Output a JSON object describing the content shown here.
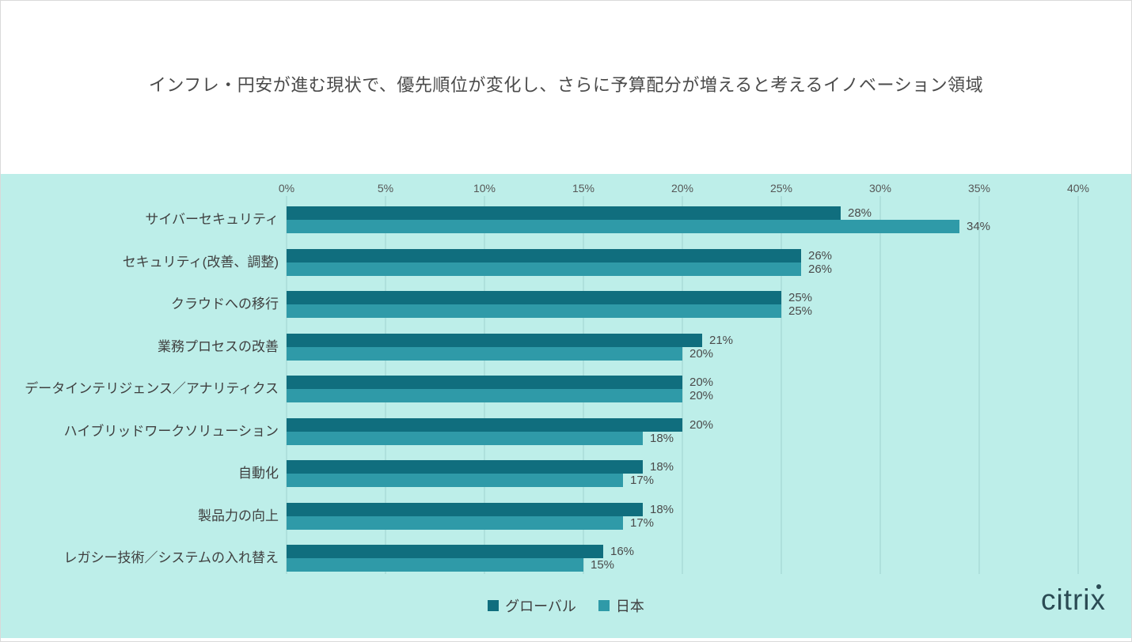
{
  "title": "インフレ・円安が進む現状で、優先順位が変化し、さらに予算配分が増えると考えるイノベーション領域",
  "chart_data": {
    "type": "bar",
    "orientation": "horizontal",
    "title": "インフレ・円安が進む現状で、優先順位が変化し、さらに予算配分が増えると考えるイノベーション領域",
    "categories": [
      "サイバーセキュリティ",
      "セキュリティ(改善、調整)",
      "クラウドへの移行",
      "業務プロセスの改善",
      "データインテリジェンス／アナリティクス",
      "ハイブリッドワークソリューション",
      "自動化",
      "製品力の向上",
      "レガシー技術／システムの入れ替え"
    ],
    "series": [
      {
        "name": "グローバル",
        "color": "#106e7e",
        "values": [
          28,
          26,
          25,
          21,
          20,
          20,
          18,
          18,
          16
        ]
      },
      {
        "name": "日本",
        "color": "#2f9aa8",
        "values": [
          34,
          26,
          25,
          20,
          20,
          18,
          17,
          17,
          15
        ]
      }
    ],
    "value_suffix": "%",
    "x_ticks": [
      "0%",
      "5%",
      "10%",
      "15%",
      "20%",
      "25%",
      "30%",
      "35%",
      "40%"
    ],
    "xlim": [
      0,
      40
    ],
    "grid": true,
    "legend_position": "bottom-center",
    "data_labels": true
  },
  "legend": {
    "items": [
      {
        "label": "グローバル",
        "color": "#106e7e"
      },
      {
        "label": "日本",
        "color": "#2f9aa8"
      }
    ]
  },
  "logo": {
    "text": "citrix"
  },
  "colors": {
    "panel_background": "#bdeee9",
    "gridline": "#aee0dc",
    "title_text": "#4a4a4a",
    "label_text": "#3f3f3f",
    "logo": "#2b4b54"
  }
}
